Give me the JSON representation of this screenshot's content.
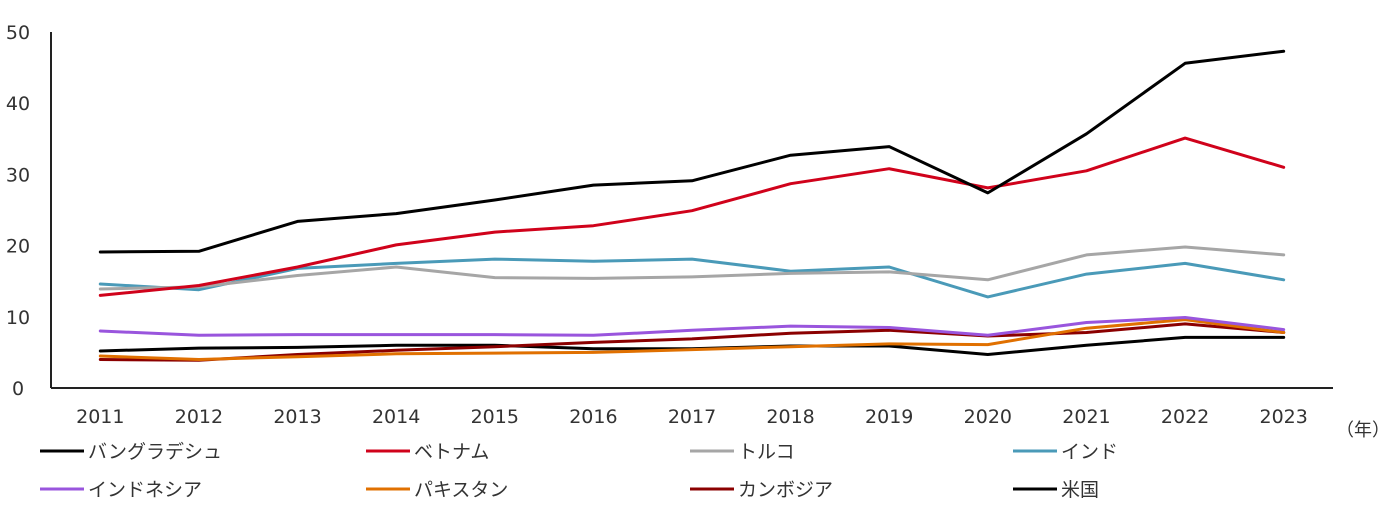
{
  "chart_data": {
    "type": "line",
    "title": "",
    "xlabel": "",
    "ylabel": "",
    "x_unit": "（年）",
    "ylim": [
      0,
      50
    ],
    "yticks": [
      0,
      10,
      20,
      30,
      40,
      50
    ],
    "grid": false,
    "legend_position": "bottom",
    "categories": [
      "2011",
      "2012",
      "2013",
      "2014",
      "2015",
      "2016",
      "2017",
      "2018",
      "2019",
      "2020",
      "2021",
      "2022",
      "2023"
    ],
    "series": [
      {
        "name": "バングラデシュ",
        "color": "#000000",
        "values": [
          19.1,
          19.2,
          23.4,
          24.5,
          26.4,
          28.5,
          29.1,
          32.7,
          33.9,
          27.4,
          35.7,
          45.6,
          47.3
        ]
      },
      {
        "name": "ベトナム",
        "color": "#d0021b",
        "values": [
          13.0,
          14.4,
          17.0,
          20.1,
          21.9,
          22.8,
          24.9,
          28.7,
          30.8,
          28.1,
          30.5,
          35.1,
          31.0
        ]
      },
      {
        "name": "トルコ",
        "color": "#a6a6a6",
        "values": [
          13.9,
          14.2,
          15.8,
          17.0,
          15.5,
          15.4,
          15.6,
          16.1,
          16.3,
          15.2,
          18.7,
          19.8,
          18.7
        ]
      },
      {
        "name": "インド",
        "color": "#4a9ab8",
        "values": [
          14.6,
          13.8,
          16.8,
          17.5,
          18.1,
          17.8,
          18.1,
          16.4,
          17.0,
          12.8,
          16.0,
          17.5,
          15.2
        ]
      },
      {
        "name": "インドネシア",
        "color": "#9955dd",
        "values": [
          8.0,
          7.4,
          7.5,
          7.5,
          7.5,
          7.4,
          8.1,
          8.7,
          8.5,
          7.4,
          9.2,
          9.9,
          8.2
        ]
      },
      {
        "name": "パキスタン",
        "color": "#e07000",
        "values": [
          4.5,
          4.0,
          4.4,
          4.8,
          4.9,
          5.0,
          5.4,
          5.8,
          6.2,
          6.1,
          8.4,
          9.6,
          7.8
        ]
      },
      {
        "name": "カンボジア",
        "color": "#8b0000",
        "values": [
          4.0,
          3.9,
          4.7,
          5.3,
          5.8,
          6.4,
          6.9,
          7.7,
          8.1,
          7.3,
          7.8,
          9.0,
          7.8
        ]
      },
      {
        "name": "米国",
        "color": "#000000",
        "values": [
          5.2,
          5.6,
          5.7,
          6.0,
          6.0,
          5.5,
          5.5,
          5.9,
          5.9,
          4.7,
          6.0,
          7.1,
          7.1
        ]
      }
    ]
  }
}
